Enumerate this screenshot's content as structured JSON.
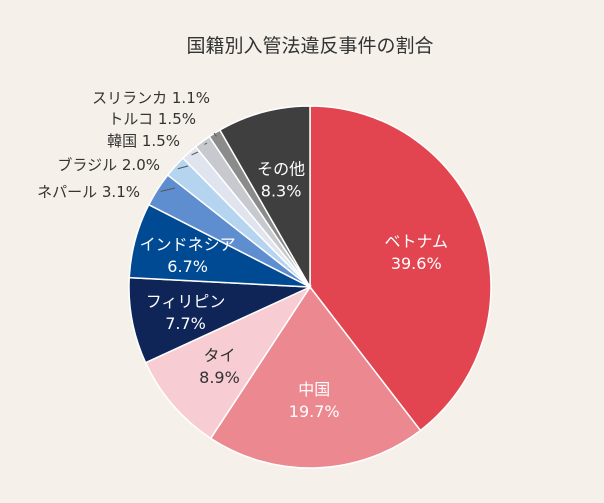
{
  "chart_data": {
    "type": "pie",
    "title": "国籍別入管法違反事件の割合",
    "start": "12 o'clock",
    "direction": "clockwise",
    "slices": [
      {
        "name": "ベトナム",
        "value": 39.6,
        "label": "39.6%",
        "color": "#e24450",
        "text_color": "#ffffff",
        "label_pos": "inside"
      },
      {
        "name": "中国",
        "value": 19.7,
        "label": "19.7%",
        "color": "#ec8890",
        "text_color": "#ffffff",
        "label_pos": "inside"
      },
      {
        "name": "タイ",
        "value": 8.9,
        "label": "8.9%",
        "color": "#f7cdd3",
        "text_color": "#333333",
        "label_pos": "inside"
      },
      {
        "name": "フィリピン",
        "value": 7.7,
        "label": "7.7%",
        "color": "#0f2558",
        "text_color": "#ffffff",
        "label_pos": "inside"
      },
      {
        "name": "インドネシア",
        "value": 6.7,
        "label": "6.7%",
        "color": "#004a94",
        "text_color": "#ffffff",
        "label_pos": "inside"
      },
      {
        "name": "ネパール",
        "value": 3.1,
        "label": "3.1%",
        "color": "#5e8ed0",
        "text_color": "#333333",
        "label_pos": "outside"
      },
      {
        "name": "ブラジル",
        "value": 2.0,
        "label": "2.0%",
        "color": "#b4d4ef",
        "text_color": "#333333",
        "label_pos": "outside"
      },
      {
        "name": "韓国",
        "value": 1.5,
        "label": "1.5%",
        "color": "#dfe4ef",
        "text_color": "#333333",
        "label_pos": "outside"
      },
      {
        "name": "トルコ",
        "value": 1.5,
        "label": "1.5%",
        "color": "#c7c9ce",
        "text_color": "#333333",
        "label_pos": "outside"
      },
      {
        "name": "スリランカ",
        "value": 1.1,
        "label": "1.1%",
        "color": "#8b8b8b",
        "text_color": "#333333",
        "label_pos": "outside"
      },
      {
        "name": "その他",
        "value": 8.3,
        "label": "8.3%",
        "color": "#3f3f3f",
        "text_color": "#ffffff",
        "label_pos": "inside"
      }
    ]
  }
}
